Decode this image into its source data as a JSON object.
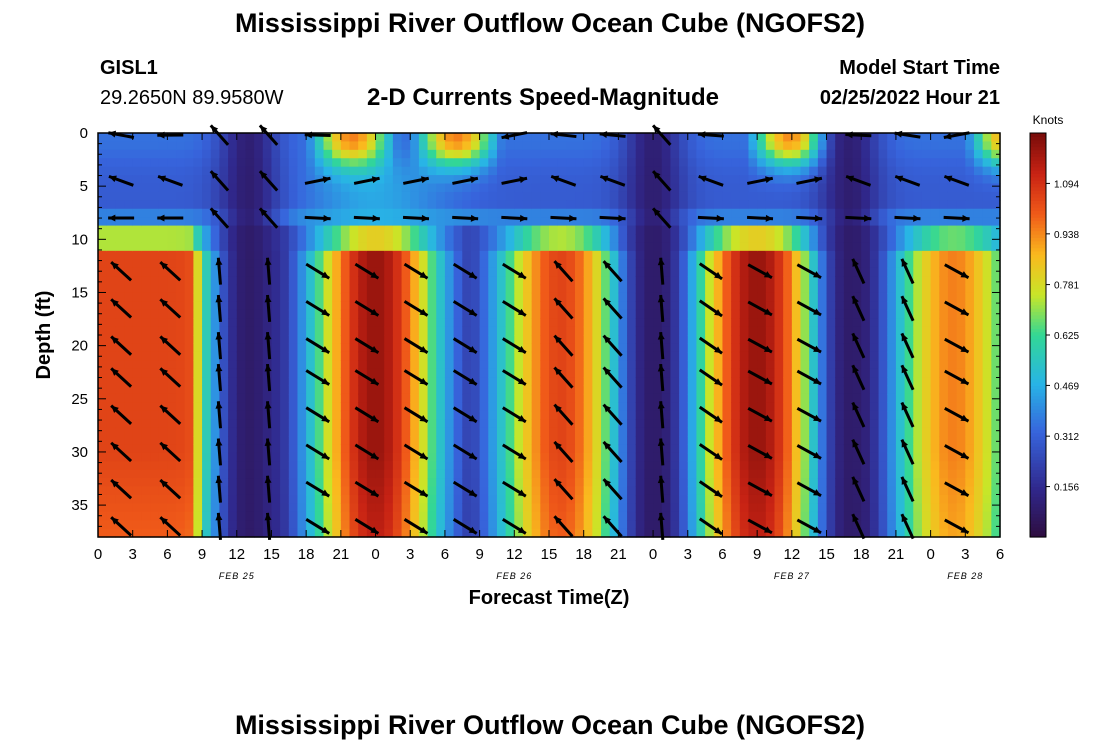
{
  "header": {
    "title": "Mississippi River Outflow Ocean Cube (NGOFS2)",
    "station_id": "GISL1",
    "station_coords": "29.2650N  89.9580W",
    "chart_subtitle": "2-D Currents Speed-Magnitude",
    "model_start_label": "Model Start Time",
    "model_start_value": "02/25/2022 Hour 21"
  },
  "footer": {
    "title": "Mississippi River Outflow Ocean Cube (NGOFS2)"
  },
  "chart_data": {
    "type": "heatmap",
    "xlabel": "Forecast Time(Z)",
    "ylabel": "Depth (ft)",
    "x_unit": "hours since 2022-02-25 00Z",
    "xlim": [
      0,
      78
    ],
    "ylim": [
      0,
      38
    ],
    "x_tick_labels": [
      "0",
      "3",
      "6",
      "9",
      "12",
      "15",
      "18",
      "21",
      "0",
      "3",
      "6",
      "9",
      "12",
      "15",
      "18",
      "21",
      "0",
      "3",
      "6",
      "9",
      "12",
      "15",
      "18",
      "21",
      "0",
      "3",
      "6"
    ],
    "y_ticks": [
      0,
      5,
      10,
      15,
      20,
      25,
      30,
      35
    ],
    "date_labels": [
      {
        "label": "FEB 25",
        "hour": 12
      },
      {
        "label": "FEB 26",
        "hour": 36
      },
      {
        "label": "FEB 27",
        "hour": 60
      },
      {
        "label": "FEB 28",
        "hour": 75
      }
    ],
    "colorbar": {
      "title": "Knots",
      "ticks": [
        "0.156",
        "0.312",
        "0.469",
        "0.625",
        "0.781",
        "0.938",
        "1.094"
      ],
      "tick_values": [
        0.156,
        0.312,
        0.469,
        0.625,
        0.781,
        0.938,
        1.094
      ],
      "range": [
        0.0,
        1.25
      ]
    },
    "speed_field": {
      "description_units": "knots",
      "deep_layer_peaks": [
        {
          "hour": 5,
          "speed": 1.05
        },
        {
          "hour": 24,
          "speed": 1.2
        },
        {
          "hour": 40,
          "speed": 1.05
        },
        {
          "hour": 57,
          "speed": 1.2
        },
        {
          "hour": 74,
          "speed": 0.95
        }
      ],
      "minima_hours": [
        13,
        48,
        65
      ]
    }
  }
}
